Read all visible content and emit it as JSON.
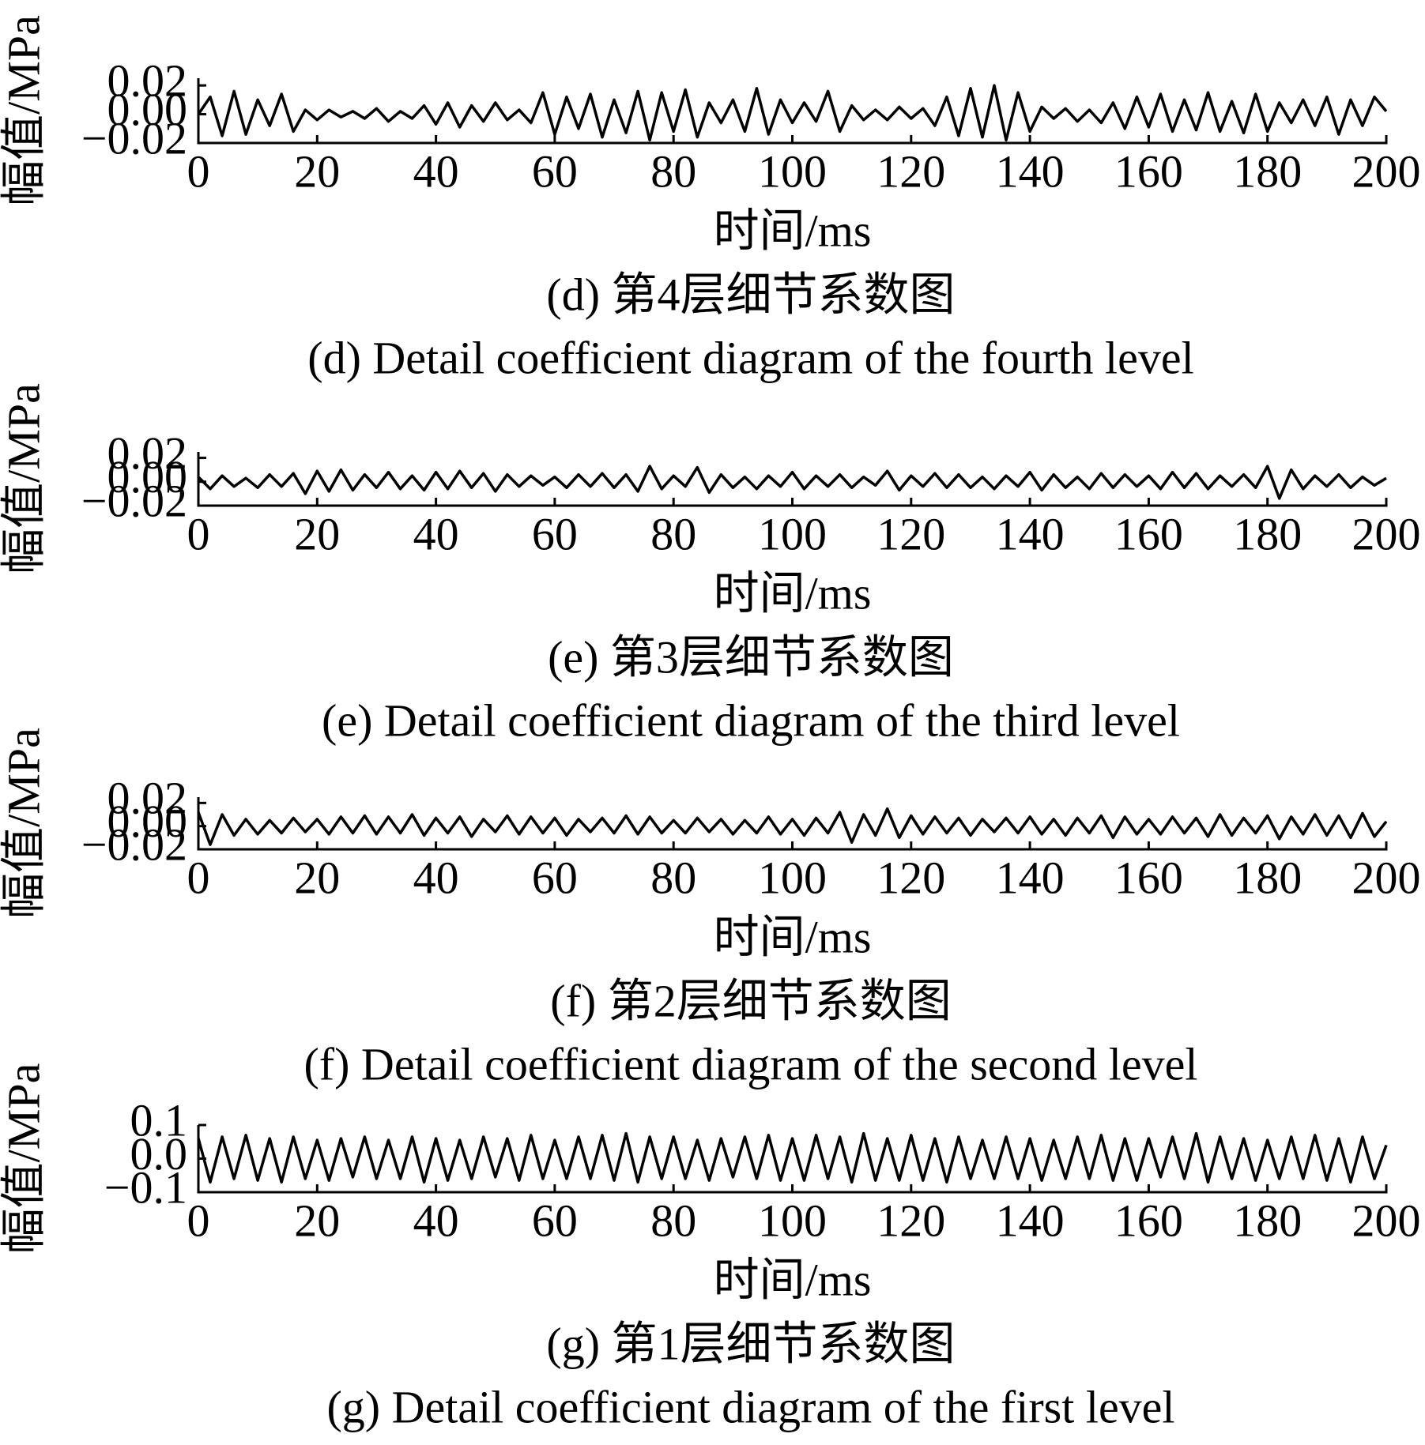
{
  "chart_data": [
    {
      "type": "line",
      "caption_zh": "(d) 第4层细节系数图",
      "caption_en": "(d) Detail coefficient diagram of the fourth level",
      "xlabel": "时间/ms",
      "ylabel": "幅值/MPa",
      "xlim": [
        0,
        200
      ],
      "xticks": [
        0,
        20,
        40,
        60,
        80,
        100,
        120,
        140,
        160,
        180,
        200
      ],
      "ylim": [
        -0.02,
        0.025
      ],
      "yticks": [
        {
          "value": 0.02,
          "label": "0.02"
        },
        {
          "value": 0,
          "label": "0.00"
        },
        {
          "value": -0.02,
          "label": "−0.02"
        }
      ],
      "color": "#000000",
      "x": [
        0,
        2,
        4,
        6,
        8,
        10,
        12,
        14,
        16,
        18,
        20,
        22,
        24,
        26,
        28,
        30,
        32,
        34,
        36,
        38,
        40,
        42,
        44,
        46,
        48,
        50,
        52,
        54,
        56,
        58,
        60,
        62,
        64,
        66,
        68,
        70,
        72,
        74,
        76,
        78,
        80,
        82,
        84,
        86,
        88,
        90,
        92,
        94,
        96,
        98,
        100,
        102,
        104,
        106,
        108,
        110,
        112,
        114,
        116,
        118,
        120,
        122,
        124,
        126,
        128,
        130,
        132,
        134,
        136,
        138,
        140,
        142,
        144,
        146,
        148,
        150,
        152,
        154,
        156,
        158,
        160,
        162,
        164,
        166,
        168,
        170,
        172,
        174,
        176,
        178,
        180,
        182,
        184,
        186,
        188,
        190,
        192,
        194,
        196,
        198,
        200
      ],
      "values": [
        0,
        0.012,
        -0.015,
        0.016,
        -0.014,
        0.01,
        -0.008,
        0.014,
        -0.012,
        0.003,
        -0.004,
        0.003,
        -0.002,
        0.002,
        -0.003,
        0.004,
        -0.005,
        0.002,
        -0.003,
        0.006,
        -0.007,
        0.008,
        -0.009,
        0.006,
        -0.005,
        0.008,
        -0.004,
        0.003,
        -0.006,
        0.015,
        -0.014,
        0.012,
        -0.01,
        0.014,
        -0.016,
        0.01,
        -0.013,
        0.016,
        -0.018,
        0.015,
        -0.012,
        0.017,
        -0.016,
        0.008,
        -0.006,
        0.01,
        -0.012,
        0.018,
        -0.014,
        0.01,
        -0.006,
        0.008,
        -0.005,
        0.016,
        -0.012,
        0.006,
        -0.004,
        0.003,
        -0.004,
        0.005,
        -0.003,
        0.004,
        -0.008,
        0.012,
        -0.015,
        0.018,
        -0.016,
        0.02,
        -0.018,
        0.015,
        -0.012,
        0.005,
        -0.003,
        0.004,
        -0.005,
        0.003,
        -0.006,
        0.008,
        -0.01,
        0.012,
        -0.009,
        0.014,
        -0.012,
        0.01,
        -0.011,
        0.015,
        -0.012,
        0.009,
        -0.013,
        0.014,
        -0.012,
        0.008,
        -0.006,
        0.01,
        -0.008,
        0.012,
        -0.014,
        0.01,
        -0.008,
        0.012,
        0.002
      ]
    },
    {
      "type": "line",
      "caption_zh": "(e) 第3层细节系数图",
      "caption_en": "(e) Detail coefficient diagram of the third level",
      "xlabel": "时间/ms",
      "ylabel": "幅值/MPa",
      "xlim": [
        0,
        200
      ],
      "xticks": [
        0,
        20,
        40,
        60,
        80,
        100,
        120,
        140,
        160,
        180,
        200
      ],
      "ylim": [
        -0.02,
        0.025
      ],
      "yticks": [
        {
          "value": 0.02,
          "label": "0.02"
        },
        {
          "value": 0,
          "label": "0.00"
        },
        {
          "value": -0.02,
          "label": "−0.02"
        }
      ],
      "color": "#000000",
      "x": [
        0,
        2,
        4,
        6,
        8,
        10,
        12,
        14,
        16,
        18,
        20,
        22,
        24,
        26,
        28,
        30,
        32,
        34,
        36,
        38,
        40,
        42,
        44,
        46,
        48,
        50,
        52,
        54,
        56,
        58,
        60,
        62,
        64,
        66,
        68,
        70,
        72,
        74,
        76,
        78,
        80,
        82,
        84,
        86,
        88,
        90,
        92,
        94,
        96,
        98,
        100,
        102,
        104,
        106,
        108,
        110,
        112,
        114,
        116,
        118,
        120,
        122,
        124,
        126,
        128,
        130,
        132,
        134,
        136,
        138,
        140,
        142,
        144,
        146,
        148,
        150,
        152,
        154,
        156,
        158,
        160,
        162,
        164,
        166,
        168,
        170,
        172,
        174,
        176,
        178,
        180,
        182,
        184,
        186,
        188,
        190,
        192,
        194,
        196,
        198,
        200
      ],
      "values": [
        0.004,
        -0.006,
        0.005,
        -0.004,
        0.003,
        -0.005,
        0.006,
        -0.004,
        0.007,
        -0.01,
        0.009,
        -0.008,
        0.01,
        -0.007,
        0.006,
        -0.005,
        0.008,
        -0.006,
        0.005,
        -0.007,
        0.008,
        -0.006,
        0.009,
        -0.005,
        0.007,
        -0.008,
        0.006,
        -0.004,
        0.005,
        -0.003,
        0.004,
        -0.005,
        0.006,
        -0.004,
        0.007,
        -0.005,
        0.006,
        -0.008,
        0.013,
        -0.006,
        0.005,
        -0.004,
        0.012,
        -0.009,
        0.006,
        -0.005,
        0.004,
        -0.006,
        0.005,
        -0.004,
        0.008,
        -0.006,
        0.005,
        -0.004,
        0.006,
        -0.005,
        0.004,
        -0.003,
        0.009,
        -0.007,
        0.005,
        -0.004,
        0.007,
        -0.005,
        0.006,
        -0.005,
        0.004,
        -0.006,
        0.005,
        -0.004,
        0.008,
        -0.007,
        0.006,
        -0.005,
        0.004,
        -0.006,
        0.007,
        -0.005,
        0.006,
        -0.004,
        0.005,
        -0.006,
        0.008,
        -0.005,
        0.007,
        -0.006,
        0.005,
        -0.004,
        0.006,
        -0.005,
        0.013,
        -0.014,
        0.01,
        -0.006,
        0.005,
        -0.004,
        0.006,
        -0.005,
        0.004,
        -0.003,
        0.003
      ]
    },
    {
      "type": "line",
      "caption_zh": "(f) 第2层细节系数图",
      "caption_en": "(f) Detail coefficient diagram of the second level",
      "xlabel": "时间/ms",
      "ylabel": "幅值/MPa",
      "xlim": [
        0,
        200
      ],
      "xticks": [
        0,
        20,
        40,
        60,
        80,
        100,
        120,
        140,
        160,
        180,
        200
      ],
      "ylim": [
        -0.02,
        0.025
      ],
      "yticks": [
        {
          "value": 0.02,
          "label": "0.02"
        },
        {
          "value": 0,
          "label": "0.00"
        },
        {
          "value": -0.02,
          "label": "−0.02"
        }
      ],
      "color": "#000000",
      "x": [
        0,
        2,
        4,
        6,
        8,
        10,
        12,
        14,
        16,
        18,
        20,
        22,
        24,
        26,
        28,
        30,
        32,
        34,
        36,
        38,
        40,
        42,
        44,
        46,
        48,
        50,
        52,
        54,
        56,
        58,
        60,
        62,
        64,
        66,
        68,
        70,
        72,
        74,
        76,
        78,
        80,
        82,
        84,
        86,
        88,
        90,
        92,
        94,
        96,
        98,
        100,
        102,
        104,
        106,
        108,
        110,
        112,
        114,
        116,
        118,
        120,
        122,
        124,
        126,
        128,
        130,
        132,
        134,
        136,
        138,
        140,
        142,
        144,
        146,
        148,
        150,
        152,
        154,
        156,
        158,
        160,
        162,
        164,
        166,
        168,
        170,
        172,
        174,
        176,
        178,
        180,
        182,
        184,
        186,
        188,
        190,
        192,
        194,
        196,
        198,
        200
      ],
      "values": [
        0.012,
        -0.016,
        0.01,
        -0.008,
        0.006,
        -0.007,
        0.005,
        -0.006,
        0.007,
        -0.005,
        0.006,
        -0.007,
        0.008,
        -0.006,
        0.009,
        -0.007,
        0.008,
        -0.006,
        0.01,
        -0.008,
        0.007,
        -0.006,
        0.008,
        -0.009,
        0.006,
        -0.005,
        0.009,
        -0.007,
        0.008,
        -0.006,
        0.007,
        -0.008,
        0.006,
        -0.005,
        0.007,
        -0.006,
        0.009,
        -0.007,
        0.008,
        -0.006,
        0.005,
        -0.006,
        0.007,
        -0.005,
        0.006,
        -0.007,
        0.005,
        -0.006,
        0.008,
        -0.007,
        0.006,
        -0.008,
        0.007,
        -0.006,
        0.012,
        -0.014,
        0.01,
        -0.008,
        0.015,
        -0.01,
        0.009,
        -0.007,
        0.008,
        -0.006,
        0.007,
        -0.008,
        0.006,
        -0.005,
        0.007,
        -0.006,
        0.008,
        -0.007,
        0.006,
        -0.008,
        0.007,
        -0.006,
        0.009,
        -0.01,
        0.008,
        -0.007,
        0.006,
        -0.007,
        0.008,
        -0.006,
        0.007,
        -0.009,
        0.01,
        -0.008,
        0.007,
        -0.006,
        0.009,
        -0.011,
        0.008,
        -0.007,
        0.01,
        -0.008,
        0.009,
        -0.01,
        0.011,
        -0.009,
        0.004
      ]
    },
    {
      "type": "line",
      "caption_zh": "(g) 第1层细节系数图",
      "caption_en": "(g) Detail coefficient diagram of the first level",
      "xlabel": "时间/ms",
      "ylabel": "幅值/MPa",
      "xlim": [
        0,
        200
      ],
      "xticks": [
        0,
        20,
        40,
        60,
        80,
        100,
        120,
        140,
        160,
        180,
        200
      ],
      "ylim": [
        -0.1,
        0.1
      ],
      "yticks": [
        0.1,
        {
          "value": 0,
          "label": "0.0"
        },
        {
          "value": -0.1,
          "label": "−0.1"
        }
      ],
      "color": "#000000",
      "x": [
        0,
        2,
        4,
        6,
        8,
        10,
        12,
        14,
        16,
        18,
        20,
        22,
        24,
        26,
        28,
        30,
        32,
        34,
        36,
        38,
        40,
        42,
        44,
        46,
        48,
        50,
        52,
        54,
        56,
        58,
        60,
        62,
        64,
        66,
        68,
        70,
        72,
        74,
        76,
        78,
        80,
        82,
        84,
        86,
        88,
        90,
        92,
        94,
        96,
        98,
        100,
        102,
        104,
        106,
        108,
        110,
        112,
        114,
        116,
        118,
        120,
        122,
        124,
        126,
        128,
        130,
        132,
        134,
        136,
        138,
        140,
        142,
        144,
        146,
        148,
        150,
        152,
        154,
        156,
        158,
        160,
        162,
        164,
        166,
        168,
        170,
        172,
        174,
        176,
        178,
        180,
        182,
        184,
        186,
        188,
        190,
        192,
        194,
        196,
        198,
        200
      ],
      "values": [
        0.06,
        -0.07,
        0.065,
        -0.06,
        0.07,
        -0.065,
        0.06,
        -0.07,
        0.065,
        -0.06,
        0.055,
        -0.065,
        0.06,
        -0.055,
        0.065,
        -0.06,
        0.055,
        -0.06,
        0.065,
        -0.07,
        0.06,
        -0.065,
        0.055,
        -0.06,
        0.065,
        -0.055,
        0.06,
        -0.065,
        0.07,
        -0.06,
        0.055,
        -0.06,
        0.065,
        -0.06,
        0.07,
        -0.065,
        0.075,
        -0.07,
        0.065,
        -0.06,
        0.065,
        -0.06,
        0.055,
        -0.065,
        0.06,
        -0.055,
        0.065,
        -0.06,
        0.07,
        -0.065,
        0.06,
        -0.065,
        0.07,
        -0.06,
        0.065,
        -0.07,
        0.075,
        -0.065,
        0.06,
        -0.065,
        0.07,
        -0.065,
        0.06,
        -0.07,
        0.065,
        -0.06,
        0.055,
        -0.06,
        0.065,
        -0.06,
        0.06,
        -0.065,
        0.055,
        -0.06,
        0.065,
        -0.06,
        0.07,
        -0.065,
        0.06,
        -0.065,
        0.06,
        -0.055,
        0.065,
        -0.06,
        0.075,
        -0.07,
        0.065,
        -0.06,
        0.06,
        -0.065,
        0.055,
        -0.06,
        0.065,
        -0.06,
        0.07,
        -0.065,
        0.06,
        -0.07,
        0.065,
        -0.06,
        0.04
      ]
    }
  ]
}
